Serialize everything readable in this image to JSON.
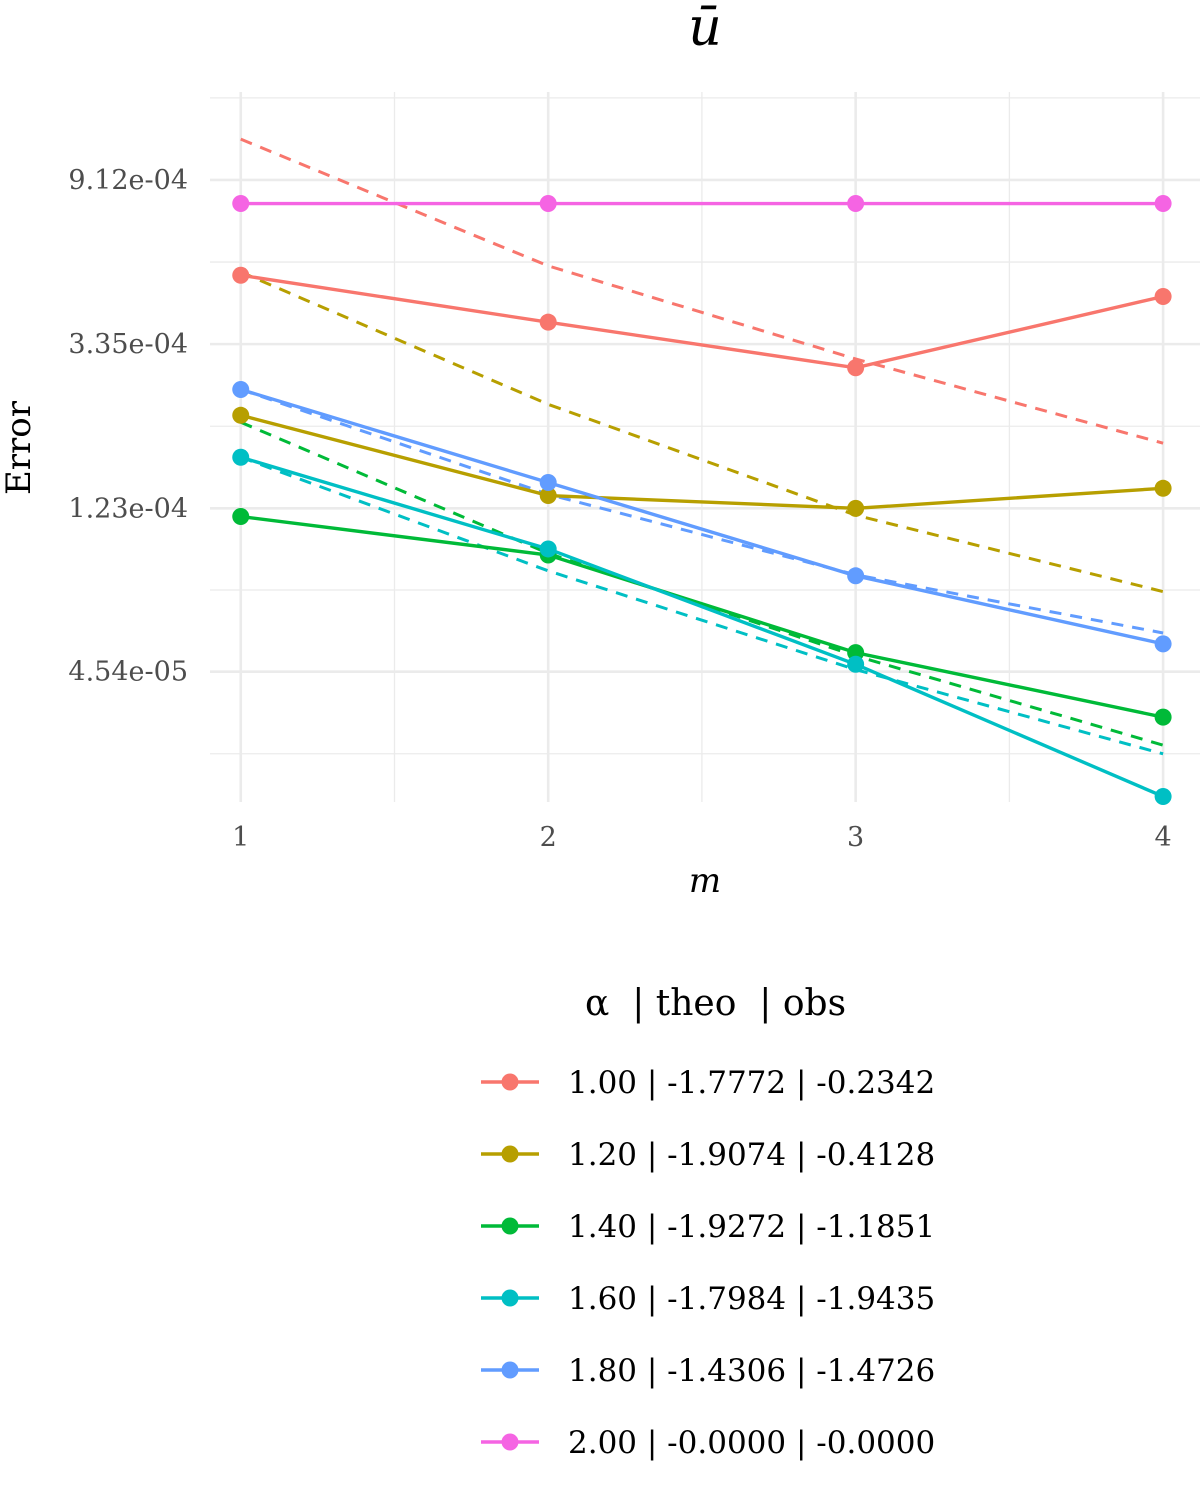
{
  "chart_data": {
    "type": "line",
    "title": "ū",
    "xlabel": "m",
    "ylabel": "Error",
    "y_scale": "log",
    "x_ticks": [
      1,
      2,
      3,
      4
    ],
    "y_ticks": [
      "9.12e-04",
      "3.35e-04",
      "1.23e-04",
      "4.54e-05"
    ],
    "y_tick_values": [
      0.000912,
      0.000335,
      0.000123,
      4.54e-05
    ],
    "xlim": [
      0.9,
      4.12
    ],
    "ylim": [
      2.05e-05,
      0.00156
    ],
    "grid": true,
    "legend_position": "bottom",
    "legend_title": "α  | theo  | obs",
    "series": [
      {
        "name": "1.00 | -1.7772 | -0.2342",
        "color": "#F8766D",
        "x": [
          1,
          2,
          3,
          4
        ],
        "observed": [
          0.00051,
          0.000383,
          0.00029,
          0.000448
        ],
        "theoretical": [
          0.00117,
          0.00054,
          0.000306,
          0.000183
        ]
      },
      {
        "name": "1.20 | -1.9074 | -0.4128",
        "color": "#B79F00",
        "x": [
          1,
          2,
          3,
          4
        ],
        "observed": [
          0.000217,
          0.000133,
          0.000123,
          0.000139
        ],
        "theoretical": [
          0.00052,
          0.000232,
          0.000118,
          7.4e-05
        ]
      },
      {
        "name": "1.40 | -1.9272 | -1.1851",
        "color": "#00BA38",
        "x": [
          1,
          2,
          3,
          4
        ],
        "observed": [
          0.000117,
          9.25e-05,
          5.1e-05,
          3.44e-05
        ],
        "theoretical": [
          0.000208,
          9.35e-05,
          5e-05,
          2.9e-05
        ]
      },
      {
        "name": "1.60 | -1.7984 | -1.9435",
        "color": "#00BFC4",
        "x": [
          1,
          2,
          3,
          4
        ],
        "observed": [
          0.000168,
          9.6e-05,
          4.75e-05,
          2.12e-05
        ],
        "theoretical": [
          0.000168,
          8.4e-05,
          4.6e-05,
          2.75e-05
        ]
      },
      {
        "name": "1.80 | -1.4306 | -1.4726",
        "color": "#619CFF",
        "x": [
          1,
          2,
          3,
          4
        ],
        "observed": [
          0.000254,
          0.000144,
          8.15e-05,
          5.38e-05
        ],
        "theoretical": [
          0.000254,
          0.000134,
          8.2e-05,
          5.75e-05
        ]
      },
      {
        "name": "2.00 | -0.0000 | -0.0000",
        "color": "#F564E3",
        "x": [
          1,
          2,
          3,
          4
        ],
        "observed": [
          0.00079,
          0.00079,
          0.00079,
          0.00079
        ],
        "theoretical": [
          0.00079,
          0.00079,
          0.00079,
          0.00079
        ]
      }
    ]
  }
}
